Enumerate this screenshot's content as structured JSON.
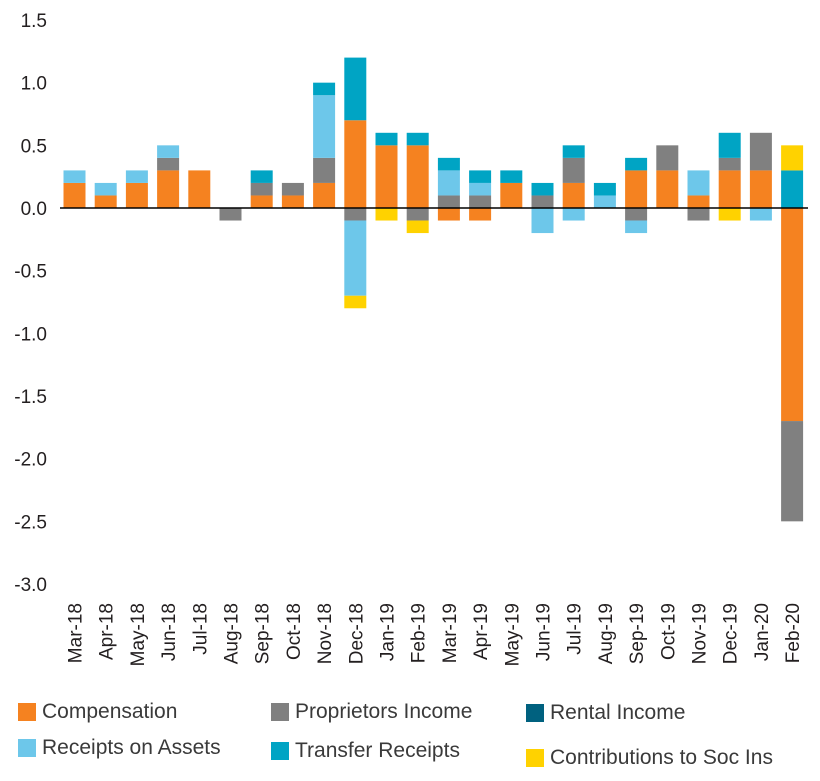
{
  "colors": {
    "compensation": "#f58220",
    "proprietors": "#808080",
    "rental": "#00617f",
    "assets": "#6dc7ea",
    "transfer": "#00a4c4",
    "contributions": "#ffd200",
    "zero_line": "#000000"
  },
  "chart_data": {
    "type": "bar",
    "stacked": true,
    "title": "",
    "xlabel": "",
    "ylabel": "",
    "ylim": [
      -3.0,
      1.5
    ],
    "yticks": [
      "1.5",
      "1.0",
      "0.5",
      "0.0",
      "-0.5",
      "-1.0",
      "-1.5",
      "-2.0",
      "-2.5",
      "-3.0"
    ],
    "ytick_values": [
      1.5,
      1.0,
      0.5,
      0.0,
      -0.5,
      -1.0,
      -1.5,
      -2.0,
      -2.5,
      -3.0
    ],
    "grid": false,
    "legend_position": "bottom",
    "categories": [
      "Mar-18",
      "Apr-18",
      "May-18",
      "Jun-18",
      "Jul-18",
      "Aug-18",
      "Sep-18",
      "Oct-18",
      "Nov-18",
      "Dec-18",
      "Jan-19",
      "Feb-19",
      "Mar-19",
      "Apr-19",
      "May-19",
      "Jun-19",
      "Jul-19",
      "Aug-19",
      "Sep-19",
      "Oct-19",
      "Nov-19",
      "Dec-19",
      "Jan-20",
      "Feb-20"
    ],
    "series": [
      {
        "name": "Compensation",
        "key": "compensation",
        "values": [
          0.2,
          0.1,
          0.2,
          0.3,
          0.3,
          0.0,
          0.1,
          0.1,
          0.2,
          0.7,
          0.5,
          0.5,
          -0.1,
          -0.1,
          0.2,
          0.0,
          0.2,
          0.0,
          0.3,
          0.3,
          0.1,
          0.3,
          0.3,
          -1.7
        ]
      },
      {
        "name": "Proprietors Income",
        "key": "proprietors",
        "values": [
          0.0,
          0.0,
          0.0,
          0.1,
          0.0,
          -0.1,
          0.1,
          0.1,
          0.2,
          -0.1,
          0.0,
          -0.1,
          0.1,
          0.1,
          0.0,
          0.1,
          0.2,
          0.0,
          -0.1,
          0.2,
          -0.1,
          0.1,
          0.3,
          -0.8
        ]
      },
      {
        "name": "Rental Income",
        "key": "rental",
        "values": [
          0,
          0,
          0,
          0,
          0,
          0,
          0,
          0,
          0,
          0,
          0,
          0,
          0,
          0,
          0,
          0,
          0,
          0,
          0,
          0,
          0,
          0,
          0,
          0
        ]
      },
      {
        "name": "Receipts on Assets",
        "key": "assets",
        "values": [
          0.1,
          0.1,
          0.1,
          0.1,
          0.0,
          0.0,
          0.0,
          0.0,
          0.5,
          -0.6,
          0.0,
          0.0,
          0.2,
          0.1,
          0.0,
          -0.2,
          -0.1,
          0.1,
          -0.1,
          0.0,
          0.2,
          0.0,
          -0.1,
          0.0
        ]
      },
      {
        "name": "Transfer Receipts",
        "key": "transfer",
        "values": [
          0.0,
          0.0,
          0.0,
          0.0,
          0.0,
          0.0,
          0.1,
          0.0,
          0.1,
          0.5,
          0.1,
          0.1,
          0.1,
          0.1,
          0.1,
          0.1,
          0.1,
          0.1,
          0.1,
          0.0,
          0.0,
          0.2,
          0.0,
          0.3
        ]
      },
      {
        "name": "Contributions to Soc Ins",
        "key": "contributions",
        "values": [
          0,
          0,
          0,
          0,
          0,
          0,
          0,
          0,
          0,
          -0.1,
          -0.1,
          -0.1,
          0,
          0,
          0,
          0,
          0,
          0,
          0,
          0,
          0,
          -0.1,
          0,
          0.2
        ]
      }
    ]
  },
  "legend": {
    "compensation": "Compensation",
    "proprietors": "Proprietors Income",
    "rental": "Rental Income",
    "assets": "Receipts on Assets",
    "transfer": "Transfer Receipts",
    "contributions": "Contributions to Soc Ins"
  }
}
